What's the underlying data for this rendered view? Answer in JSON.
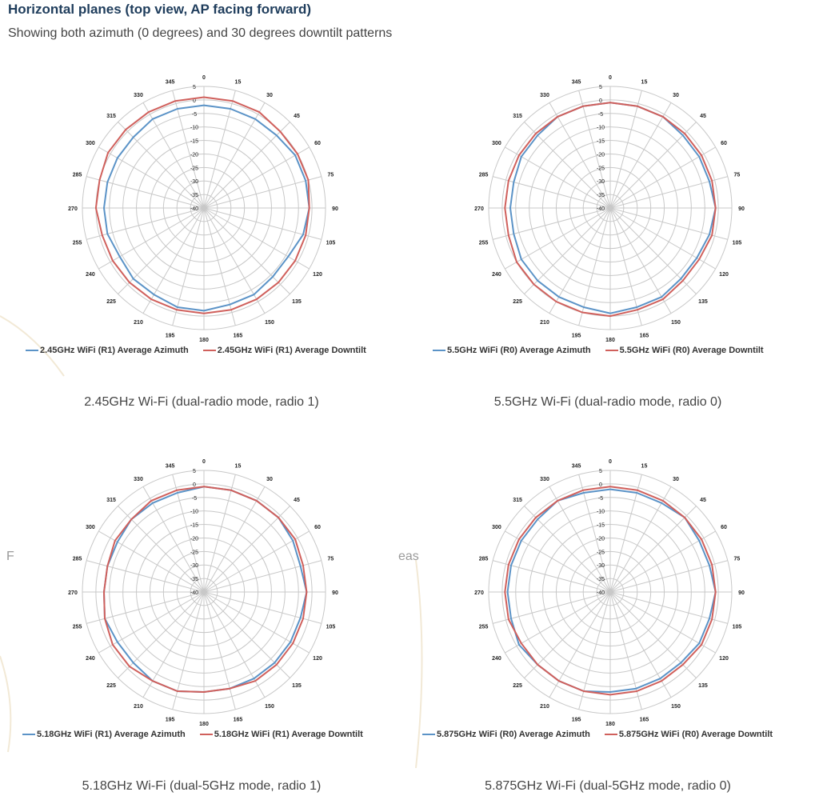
{
  "header": {
    "title": "Horizontal planes (top view, AP facing forward)",
    "subtitle": "Showing both azimuth (0 degrees) and 30 degrees downtilt patterns"
  },
  "stray_text": [
    "F",
    "eas"
  ],
  "colors": {
    "azimuth": "#5b93c7",
    "downtilt": "#d0605c",
    "grid": "#c8c8c8"
  },
  "chart_data": [
    {
      "type": "polar-line",
      "caption": "2.45GHz Wi-Fi (dual-radio mode, radio 1)",
      "angles": [
        0,
        15,
        30,
        45,
        60,
        75,
        90,
        105,
        120,
        135,
        150,
        165,
        180,
        195,
        210,
        225,
        240,
        255,
        270,
        285,
        300,
        315,
        330,
        345
      ],
      "radial_ticks": [
        5,
        0,
        -5,
        -10,
        -15,
        -20,
        -25,
        -30,
        -35,
        -40
      ],
      "rlim": [
        -40,
        5
      ],
      "series": [
        {
          "name": "2.45GHz WiFi (R1) Average Azimuth",
          "values": [
            -2,
            -2,
            -2,
            -2,
            -1,
            -1,
            -1,
            -2,
            -4,
            -4,
            -3,
            -3,
            -2,
            -2,
            -3,
            -3,
            -4,
            -3,
            -3,
            -3,
            -3,
            -3,
            -2,
            -2
          ]
        },
        {
          "name": "2.45GHz WiFi (R1) Average Downtilt",
          "values": [
            1,
            1,
            1,
            0,
            0,
            0,
            -1,
            -1,
            -1,
            -1,
            -1,
            -1,
            -1,
            -1,
            -1,
            -1,
            -1,
            -1,
            0,
            0,
            1,
            1,
            1,
            1
          ]
        }
      ]
    },
    {
      "type": "polar-line",
      "caption": "5.5GHz Wi-Fi (dual-radio mode, radio 0)",
      "angles": [
        0,
        15,
        30,
        45,
        60,
        75,
        90,
        105,
        120,
        135,
        150,
        165,
        180,
        195,
        210,
        225,
        240,
        255,
        270,
        285,
        300,
        315,
        330,
        345
      ],
      "radial_ticks": [
        5,
        0,
        -5,
        -10,
        -15,
        -20,
        -25,
        -30,
        -35,
        -40
      ],
      "rlim": [
        -40,
        5
      ],
      "series": [
        {
          "name": "5.5GHz WiFi (R0) Average Azimuth",
          "values": [
            -1,
            -1,
            -1,
            -2,
            -2,
            -2,
            -1,
            -2,
            -3,
            -3,
            -2,
            -2,
            -1,
            -2,
            -2,
            -2,
            -2,
            -3,
            -3,
            -3,
            -2,
            -2,
            -1,
            -1
          ]
        },
        {
          "name": "5.5GHz WiFi (R0) Average Downtilt",
          "values": [
            -1,
            -1,
            -1,
            -1,
            -1,
            -1,
            -1,
            -1,
            -2,
            -2,
            -1,
            -1,
            0,
            0,
            0,
            0,
            0,
            -1,
            -1,
            -1,
            -1,
            -1,
            -1,
            -1
          ]
        }
      ]
    },
    {
      "type": "polar-line",
      "caption": "5.18GHz Wi-Fi (dual-5GHz mode, radio 1)",
      "angles": [
        0,
        15,
        30,
        45,
        60,
        75,
        90,
        105,
        120,
        135,
        150,
        165,
        180,
        195,
        210,
        225,
        240,
        255,
        270,
        285,
        300,
        315,
        330,
        345
      ],
      "radial_ticks": [
        5,
        0,
        -5,
        -10,
        -15,
        -20,
        -25,
        -30,
        -35,
        -40
      ],
      "rlim": [
        -40,
        5
      ],
      "series": [
        {
          "name": "5.18GHz WiFi (R1) Average Azimuth",
          "values": [
            -1,
            -1,
            -1,
            -1,
            -2,
            -3,
            -2,
            -3,
            -3,
            -3,
            -3,
            -3,
            -3,
            -2,
            -2,
            -3,
            -3,
            -2,
            -3,
            -3,
            -3,
            -2,
            -2,
            -2
          ]
        },
        {
          "name": "5.18GHz WiFi (R1) Average Downtilt",
          "values": [
            -1,
            -1,
            -1,
            -1,
            -1,
            -2,
            -2,
            -2,
            -2,
            -2,
            -2,
            -3,
            -3,
            -2,
            -2,
            -1,
            -1,
            -2,
            -3,
            -3,
            -2,
            -2,
            -1,
            -1
          ]
        }
      ]
    },
    {
      "type": "polar-line",
      "caption": "5.875GHz Wi-Fi (dual-5GHz mode, radio 0)",
      "angles": [
        0,
        15,
        30,
        45,
        60,
        75,
        90,
        105,
        120,
        135,
        150,
        165,
        180,
        195,
        210,
        225,
        240,
        255,
        270,
        285,
        300,
        315,
        330,
        345
      ],
      "radial_ticks": [
        5,
        0,
        -5,
        -10,
        -15,
        -20,
        -25,
        -30,
        -35,
        -40
      ],
      "rlim": [
        -40,
        5
      ],
      "series": [
        {
          "name": "5.875GHz WiFi (R0) Average Azimuth",
          "values": [
            -2,
            -2,
            -2,
            -1,
            -2,
            -2,
            -1,
            -2,
            -2,
            -3,
            -3,
            -3,
            -3,
            -2,
            -2,
            -2,
            -1,
            -2,
            -2,
            -2,
            -2,
            -2,
            -1,
            -2
          ]
        },
        {
          "name": "5.875GHz WiFi (R0) Average Downtilt",
          "values": [
            -1,
            -1,
            -1,
            -1,
            -1,
            -1,
            -1,
            -1,
            -1,
            -2,
            -2,
            -2,
            -2,
            -2,
            -2,
            -2,
            -2,
            -1,
            -1,
            -1,
            -1,
            -1,
            -1,
            -1
          ]
        }
      ]
    }
  ]
}
